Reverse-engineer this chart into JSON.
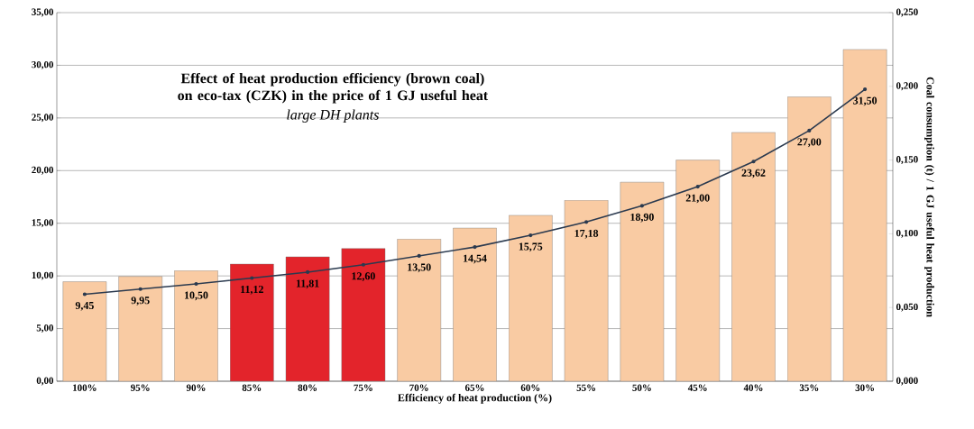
{
  "chart_data": {
    "type": "bar",
    "title": "Effect of heat production efficiency (brown coal) on eco-tax (CZK) in  the price of 1 GJ  useful heat",
    "subtitle": "large DH plants",
    "xlabel": "Efficiency of heat production (%)",
    "y2label": "Coal consumption (t) / 1 GJ useful heat production",
    "categories": [
      "100%",
      "95%",
      "90%",
      "85%",
      "80%",
      "75%",
      "70%",
      "65%",
      "60%",
      "55%",
      "50%",
      "45%",
      "40%",
      "35%",
      "30%"
    ],
    "series": [
      {
        "values": [
          9.45,
          9.95,
          10.5,
          11.12,
          11.81,
          12.6,
          13.5,
          14.54,
          15.75,
          17.18,
          18.9,
          21.0,
          23.62,
          27.0,
          31.5
        ],
        "colors": [
          "#f9cba3",
          "#f9cba3",
          "#f9cba3",
          "#e3242b",
          "#e3242b",
          "#e3242b",
          "#f9cba3",
          "#f9cba3",
          "#f9cba3",
          "#f9cba3",
          "#f9cba3",
          "#f9cba3",
          "#f9cba3",
          "#f9cba3",
          "#f9cba3"
        ],
        "value_labels": [
          "9,45",
          "9,95",
          "10,50",
          "11,12",
          "11,81",
          "12,60",
          "13,50",
          "14,54",
          "15,75",
          "17,18",
          "18,90",
          "21,00",
          "23,62",
          "27,00",
          "31,50"
        ]
      },
      {
        "type": "line",
        "axis": "y2",
        "color": "#2b3a4f",
        "marker": "circle",
        "values": [
          0.059,
          0.0625,
          0.066,
          0.07,
          0.074,
          0.079,
          0.085,
          0.091,
          0.099,
          0.108,
          0.119,
          0.132,
          0.149,
          0.17,
          0.198
        ]
      }
    ],
    "ylim": [
      0,
      35
    ],
    "yticks": [
      {
        "value": 0,
        "label": "0,00"
      },
      {
        "value": 5,
        "label": "5,00"
      },
      {
        "value": 10,
        "label": "10,00"
      },
      {
        "value": 15,
        "label": "15,00"
      },
      {
        "value": 20,
        "label": "20,00"
      },
      {
        "value": 25,
        "label": "25,00"
      },
      {
        "value": 30,
        "label": "30,00"
      },
      {
        "value": 35,
        "label": "35,00"
      }
    ],
    "y2lim": [
      0,
      0.25
    ],
    "y2ticks": [
      {
        "value": 0,
        "label": "0,000"
      },
      {
        "value": 0.05,
        "label": "0,050"
      },
      {
        "value": 0.1,
        "label": "0,100"
      },
      {
        "value": 0.15,
        "label": "0,150"
      },
      {
        "value": 0.2,
        "label": "0,200"
      },
      {
        "value": 0.25,
        "label": "0,250"
      }
    ],
    "grid": "y"
  }
}
